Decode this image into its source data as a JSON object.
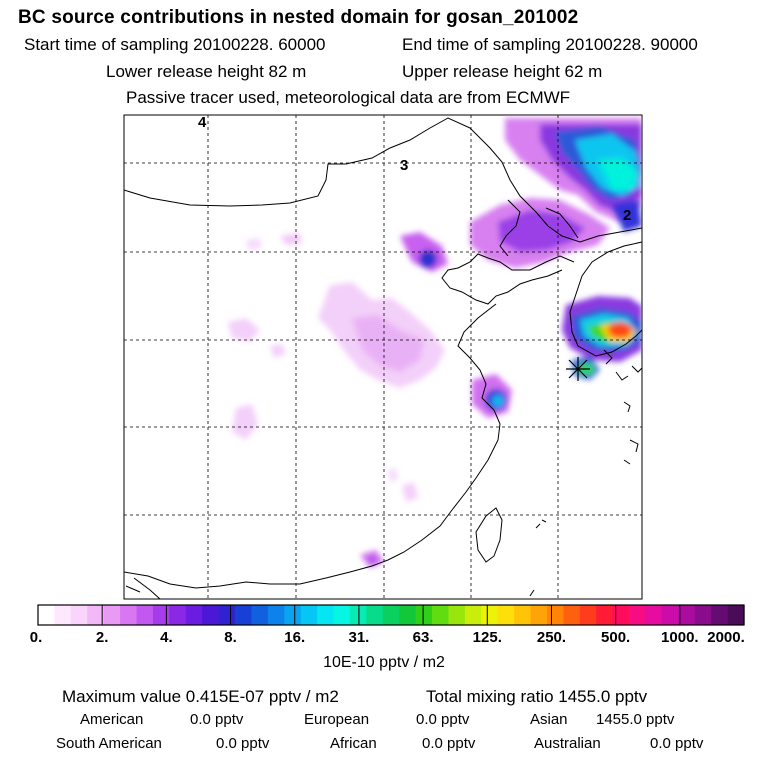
{
  "title": "BC  source contributions in nested domain for gosan_201002",
  "header": {
    "start_label": "Start time of sampling 20100228. 60000",
    "end_label": "End time of sampling 20100228. 90000",
    "lower_release": "Lower release height   82 m",
    "upper_release": "Upper release height   62 m",
    "tracer_note": "Passive tracer used, meteorological data are from ECMWF"
  },
  "map": {
    "grid_labels": [
      "4",
      "3",
      "2"
    ],
    "receptor_symbol": "asterisk"
  },
  "colorbar": {
    "ticks": [
      "0.",
      "2.",
      "4.",
      "8.",
      "16.",
      "31.",
      "63.",
      "125.",
      "250.",
      "500.",
      "1000.",
      "2000."
    ],
    "unit": "10E-10 pptv / m2",
    "colors": [
      "#ffffff",
      "#fde8fd",
      "#f9d4fb",
      "#f2b8f8",
      "#e89af4",
      "#d977f2",
      "#c258f0",
      "#a63cec",
      "#8a28e6",
      "#6a1de0",
      "#4b18d8",
      "#3022d0",
      "#1840d6",
      "#1060e0",
      "#0c82ea",
      "#08a4f0",
      "#06c6f4",
      "#05e6f2",
      "#05f6e2",
      "#06ecb4",
      "#08dc8a",
      "#0ad060",
      "#12c83a",
      "#30d01a",
      "#60dc10",
      "#98e60c",
      "#c8ee0a",
      "#ecf20a",
      "#fde00a",
      "#ffc408",
      "#ffa408",
      "#ff8408",
      "#ff6010",
      "#ff3c1c",
      "#ff1c34",
      "#ff0c5c",
      "#f80c84",
      "#e60ca0",
      "#cc0ca8",
      "#aa0ca0",
      "#880c8c",
      "#640c74",
      "#4a0c58"
    ]
  },
  "stats": {
    "max_line": "Maximum value  0.415E-07 pptv / m2",
    "total_line": "Total mixing ratio     1455.0 pptv",
    "rows": [
      [
        "American",
        "0.0 pptv",
        "European",
        "0.0 pptv",
        "Asian",
        "1455.0 pptv"
      ],
      [
        "South American",
        "0.0 pptv",
        "African",
        "0.0 pptv",
        "Australian",
        "0.0 pptv"
      ]
    ]
  }
}
